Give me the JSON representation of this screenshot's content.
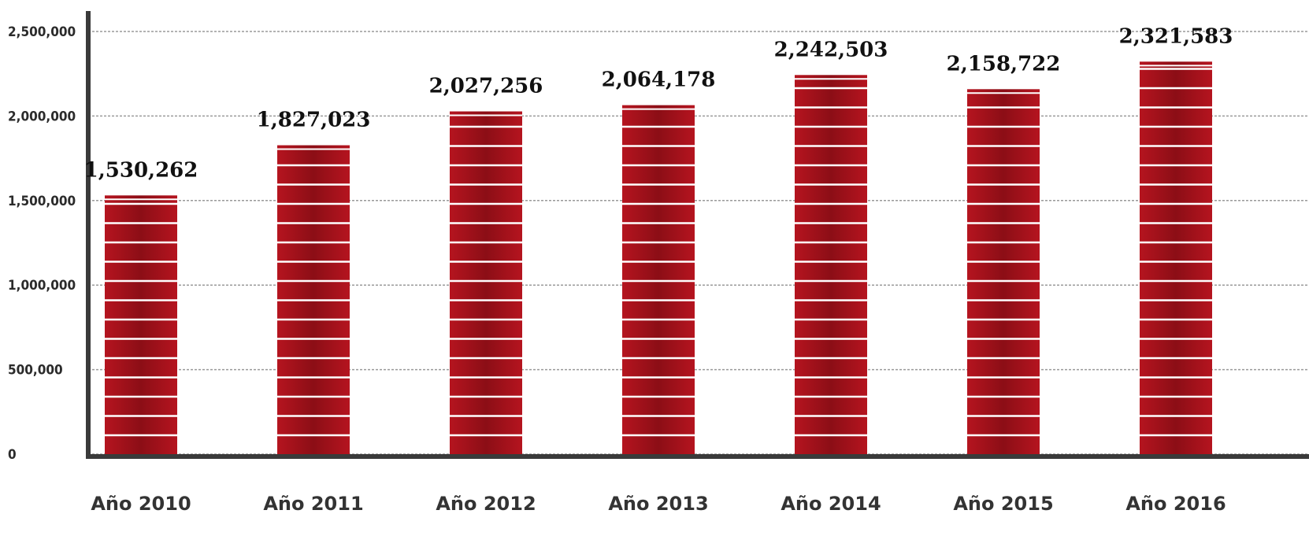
{
  "chart_data": {
    "type": "bar",
    "categories": [
      "Año 2010",
      "Año 2011",
      "Año 2012",
      "Año 2013",
      "Año 2014",
      "Año 2015",
      "Año 2016"
    ],
    "values": [
      1530262,
      1827023,
      2027256,
      2064178,
      2242503,
      2158722,
      2321583
    ],
    "data_labels": [
      "1,530,262",
      "1,827,023",
      "2,027,256",
      "2,064,178",
      "2,242,503",
      "2,158,722",
      "2,321,583"
    ],
    "yticks": [
      0,
      500000,
      1000000,
      1500000,
      2000000,
      2500000
    ],
    "ytick_labels": [
      "0",
      "500,000",
      "1,000,000",
      "1,500,000",
      "2,000,000",
      "2,500,000"
    ],
    "ylim": [
      0,
      2500000
    ],
    "title": "",
    "xlabel": "",
    "ylabel": "",
    "grid": true,
    "legend": "none",
    "bar_color": "#b5141f",
    "bar_color_dark": "#8c0e16",
    "axis_color": "#3a3a3a",
    "grid_color": "#9a9a9a"
  }
}
